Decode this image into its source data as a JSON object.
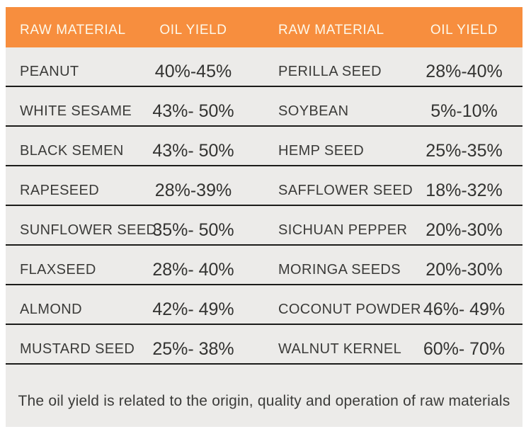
{
  "table": {
    "header_cols": [
      "RAW MATERIAL",
      "OIL YIELD",
      "RAW MATERIAL",
      "OIL YIELD"
    ],
    "rows": [
      {
        "material_left": "PEANUT",
        "yield_left": "40%-45%",
        "material_right": "PERILLA SEED",
        "yield_right": "28%-40%"
      },
      {
        "material_left": "WHITE SESAME",
        "yield_left": "43%- 50%",
        "material_right": "SOYBEAN",
        "yield_right": "5%-10%"
      },
      {
        "material_left": "BLACK SEMEN",
        "yield_left": "43%- 50%",
        "material_right": "HEMP SEED",
        "yield_right": "25%-35%"
      },
      {
        "material_left": "RAPESEED",
        "yield_left": "28%-39%",
        "material_right": "SAFFLOWER SEED",
        "yield_right": "18%-32%"
      },
      {
        "material_left": "SUNFLOWER SEED",
        "yield_left": "35%- 50%",
        "material_right": "SICHUAN PEPPER",
        "yield_right": "20%-30%"
      },
      {
        "material_left": "FLAXSEED",
        "yield_left": "28%- 40%",
        "material_right": "MORINGA SEEDS",
        "yield_right": "20%-30%"
      },
      {
        "material_left": "ALMOND",
        "yield_left": "42%- 49%",
        "material_right": "COCONUT POWDER",
        "yield_right": "46%- 49%"
      },
      {
        "material_left": "MUSTARD SEED",
        "yield_left": "25%- 38%",
        "material_right": "WALNUT KERNEL",
        "yield_right": "60%- 70%"
      }
    ],
    "footnote": "The oil yield is related to the origin, quality and operation of raw materials"
  },
  "colors": {
    "header_bg": "#F78E3E",
    "header_text": "#FDF8EA",
    "row_bg": "#ECEBE9",
    "separator_line": "#1C1C1A",
    "body_text": "#3B3B39"
  },
  "chart_data": {
    "type": "table",
    "title": "",
    "columns": [
      "RAW MATERIAL",
      "OIL YIELD",
      "RAW MATERIAL",
      "OIL YIELD"
    ],
    "rows": [
      [
        "PEANUT",
        "40%-45%",
        "PERILLA SEED",
        "28%-40%"
      ],
      [
        "WHITE SESAME",
        "43%- 50%",
        "SOYBEAN",
        "5%-10%"
      ],
      [
        "BLACK SEMEN",
        "43%- 50%",
        "HEMP SEED",
        "25%-35%"
      ],
      [
        "RAPESEED",
        "28%-39%",
        "SAFFLOWER SEED",
        "18%-32%"
      ],
      [
        "SUNFLOWER SEED",
        "35%- 50%",
        "SICHUAN PEPPER",
        "20%-30%"
      ],
      [
        "FLAXSEED",
        "28%- 40%",
        "MORINGA SEEDS",
        "20%-30%"
      ],
      [
        "ALMOND",
        "42%- 49%",
        "COCONUT POWDER",
        "46%- 49%"
      ],
      [
        "MUSTARD SEED",
        "25%- 38%",
        "WALNUT KERNEL",
        "60%- 70%"
      ]
    ],
    "note": "The oil yield is related to the origin, quality and operation of raw materials"
  }
}
